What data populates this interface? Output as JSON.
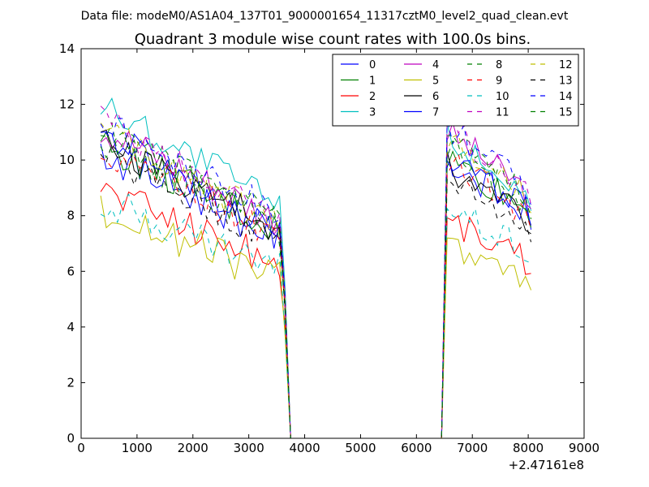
{
  "header_text": "Data file: modeM0/AS1A04_137T01_9000001654_11317cztM0_level2_quad_clean.evt",
  "chart_data": {
    "type": "line",
    "title": "Quadrant 3 module wise count rates with 100.0s bins.",
    "xlabel": "",
    "ylabel": "",
    "x_offset_label": "+2.47161e8",
    "xlim": [
      0,
      9000
    ],
    "ylim": [
      0,
      14
    ],
    "xticks": [
      0,
      1000,
      2000,
      3000,
      4000,
      5000,
      6000,
      7000,
      8000,
      9000
    ],
    "yticks": [
      0,
      2,
      4,
      6,
      8,
      10,
      12,
      14
    ],
    "grid": false,
    "legend_position": "top-right",
    "legend_columns": 4,
    "x_segment1": [
      350,
      450,
      550,
      650,
      750,
      850,
      950,
      1050,
      1150,
      1250,
      1350,
      1450,
      1550,
      1650,
      1750,
      1850,
      1950,
      2050,
      2150,
      2250,
      2350,
      2450,
      2550,
      2650,
      2750,
      2850,
      2950,
      3050,
      3150,
      3250,
      3350,
      3450,
      3550,
      3650,
      3750
    ],
    "x_segment2": [
      3750,
      3850,
      4500,
      5500,
      6450,
      6550,
      6650,
      6750,
      6850,
      6950,
      7050,
      7150,
      7250,
      7350,
      7450,
      7550,
      7650,
      7750,
      7850,
      7950,
      8050
    ],
    "series": [
      {
        "name": "0",
        "color": "#0000ff",
        "dash": "solid",
        "level1": 10.3,
        "level2": 10.0
      },
      {
        "name": "1",
        "color": "#008000",
        "dash": "solid",
        "level1": 10.6,
        "level2": 10.1
      },
      {
        "name": "2",
        "color": "#ff0000",
        "dash": "solid",
        "level1": 9.0,
        "level2": 7.9
      },
      {
        "name": "3",
        "color": "#00bfbf",
        "dash": "solid",
        "level1": 12.0,
        "level2": 10.9
      },
      {
        "name": "4",
        "color": "#bf00bf",
        "dash": "solid",
        "level1": 11.2,
        "level2": 11.0
      },
      {
        "name": "5",
        "color": "#bfbf00",
        "dash": "solid",
        "level1": 8.2,
        "level2": 7.1
      },
      {
        "name": "6",
        "color": "#000000",
        "dash": "solid",
        "level1": 10.7,
        "level2": 9.8
      },
      {
        "name": "7",
        "color": "#0000ff",
        "dash": "solid",
        "level1": 10.9,
        "level2": 10.2
      },
      {
        "name": "8",
        "color": "#008000",
        "dash": "dashed",
        "level1": 11.0,
        "level2": 10.7
      },
      {
        "name": "9",
        "color": "#ff0000",
        "dash": "dashed",
        "level1": 10.4,
        "level2": 10.0
      },
      {
        "name": "10",
        "color": "#00bfbf",
        "dash": "dashed",
        "level1": 8.6,
        "level2": 8.4
      },
      {
        "name": "11",
        "color": "#bf00bf",
        "dash": "dashed",
        "level1": 11.4,
        "level2": 11.2
      },
      {
        "name": "12",
        "color": "#bfbf00",
        "dash": "dashed",
        "level1": 11.0,
        "level2": 10.8
      },
      {
        "name": "13",
        "color": "#000000",
        "dash": "dashed",
        "level1": 10.1,
        "level2": 9.4
      },
      {
        "name": "14",
        "color": "#0000ff",
        "dash": "dashed",
        "level1": 11.4,
        "level2": 11.2
      },
      {
        "name": "15",
        "color": "#008000",
        "dash": "dashed",
        "level1": 10.8,
        "level2": 10.5
      }
    ]
  }
}
